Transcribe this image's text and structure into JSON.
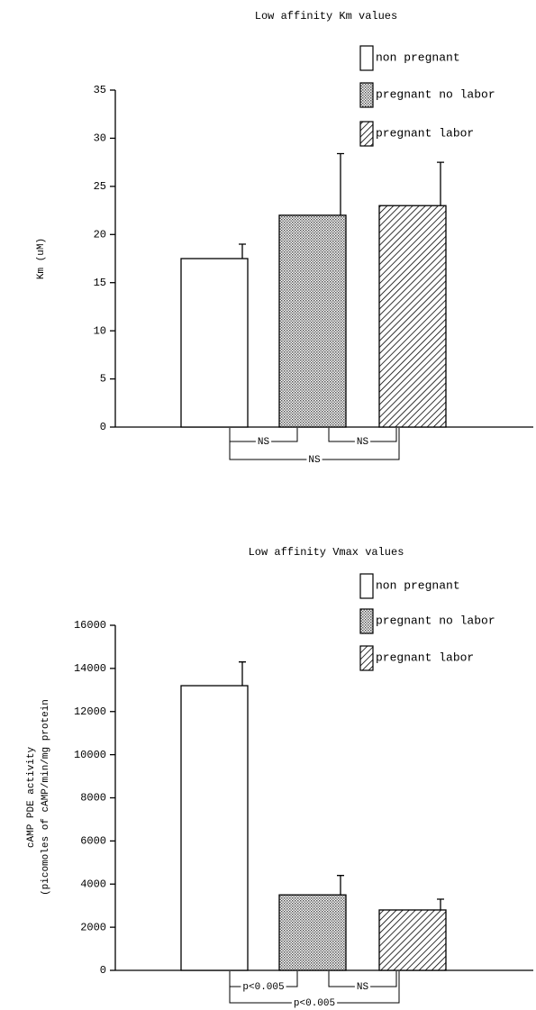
{
  "chart_data": [
    {
      "type": "bar",
      "title": "Low affinity Km values",
      "ylabel": [
        "Km (uM)"
      ],
      "ylim": [
        0,
        35
      ],
      "yticks": [
        0,
        5,
        10,
        15,
        20,
        25,
        30,
        35
      ],
      "series": [
        {
          "name": "non pregnant",
          "color": "#ffffff",
          "pattern": "none",
          "values": [
            17.5
          ],
          "errors": [
            1.5
          ]
        },
        {
          "name": "pregnant no labor",
          "color": "#9a9a9a",
          "pattern": "dots",
          "values": [
            22
          ],
          "errors": [
            6.4
          ]
        },
        {
          "name": "pregnant labor",
          "color": "#000000",
          "pattern": "hatch",
          "values": [
            23
          ],
          "errors": [
            4.5
          ]
        }
      ],
      "annotations": [
        "NS",
        "NS",
        "NS"
      ]
    },
    {
      "type": "bar",
      "title": "Low affinity Vmax values",
      "ylabel": [
        "cAMP PDE activity",
        "(picomoles of cAMP/min/mg protein"
      ],
      "ylim": [
        0,
        16000
      ],
      "yticks": [
        0,
        2000,
        4000,
        6000,
        8000,
        10000,
        12000,
        14000,
        16000
      ],
      "series": [
        {
          "name": "non pregnant",
          "color": "#ffffff",
          "pattern": "none",
          "values": [
            13200
          ],
          "errors": [
            1100
          ]
        },
        {
          "name": "pregnant no labor",
          "color": "#9a9a9a",
          "pattern": "dots",
          "values": [
            3500
          ],
          "errors": [
            900
          ]
        },
        {
          "name": "pregnant labor",
          "color": "#000000",
          "pattern": "hatch",
          "values": [
            2800
          ],
          "errors": [
            500
          ]
        }
      ],
      "annotations": [
        "p<0.005",
        "NS",
        "p<0.005"
      ]
    }
  ]
}
